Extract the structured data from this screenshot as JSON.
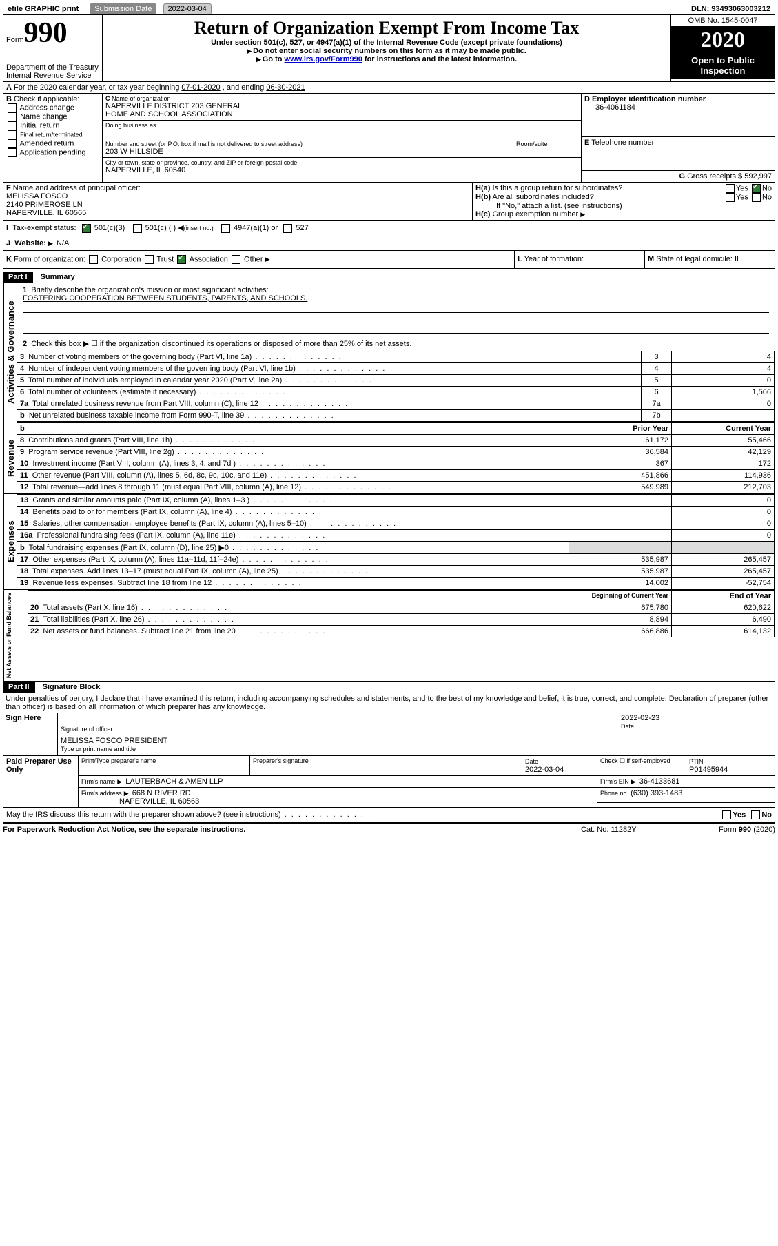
{
  "topbar": {
    "efile": "efile GRAPHIC print",
    "submission_label": "Submission Date",
    "submission_date": "2022-03-04",
    "dln_label": "DLN:",
    "dln": "93493063003212"
  },
  "header": {
    "form_label": "Form",
    "form_num": "990",
    "dept1": "Department of the Treasury",
    "dept2": "Internal Revenue Service",
    "title": "Return of Organization Exempt From Income Tax",
    "sub1": "Under section 501(c), 527, or 4947(a)(1) of the Internal Revenue Code (except private foundations)",
    "sub2": "Do not enter social security numbers on this form as it may be made public.",
    "sub3_pre": "Go to ",
    "sub3_link": "www.irs.gov/Form990",
    "sub3_post": " for instructions and the latest information.",
    "omb": "OMB No. 1545-0047",
    "year": "2020",
    "open": "Open to Public Inspection"
  },
  "A": {
    "text": "For the 2020 calendar year, or tax year beginning ",
    "begin": "07-01-2020",
    "mid": ", and ending ",
    "end": "06-30-2021"
  },
  "B": {
    "label": "Check if applicable:",
    "opts": [
      "Address change",
      "Name change",
      "Initial return",
      "Final return/terminated",
      "Amended return",
      "Application pending"
    ]
  },
  "C": {
    "name_label": "Name of organization",
    "name1": "NAPERVILLE DISTRICT 203 GENERAL",
    "name2": "HOME AND SCHOOL ASSOCIATION",
    "dba_label": "Doing business as",
    "street_label": "Number and street (or P.O. box if mail is not delivered to street address)",
    "room_label": "Room/suite",
    "street": "203 W HILLSIDE",
    "city_label": "City or town, state or province, country, and ZIP or foreign postal code",
    "city": "NAPERVILLE, IL  60540"
  },
  "D": {
    "label": "Employer identification number",
    "val": "36-4061184"
  },
  "E": {
    "label": "Telephone number"
  },
  "G": {
    "label": "Gross receipts $",
    "val": "592,997"
  },
  "F": {
    "label": "Name and address of principal officer:",
    "l1": "MELISSA FOSCO",
    "l2": "2140 PRIMEROSE LN",
    "l3": "NAPERVILLE, IL  60565"
  },
  "H": {
    "a": "Is this a group return for subordinates?",
    "b": "Are all subordinates included?",
    "bnote": "If \"No,\" attach a list. (see instructions)",
    "c": "Group exemption number"
  },
  "I": {
    "label": "Tax-exempt status:",
    "o1": "501(c)(3)",
    "o2": "501(c) (   )",
    "o2b": "(insert no.)",
    "o3": "4947(a)(1) or",
    "o4": "527"
  },
  "J": {
    "label": "Website:",
    "val": "N/A"
  },
  "K": {
    "label": "Form of organization:",
    "o1": "Corporation",
    "o2": "Trust",
    "o3": "Association",
    "o4": "Other"
  },
  "L": {
    "label": "Year of formation:"
  },
  "M": {
    "label": "State of legal domicile:",
    "val": "IL"
  },
  "part1": {
    "hdr": "Part I",
    "title": "Summary",
    "q1": "Briefly describe the organization's mission or most significant activities:",
    "q1v": "FOSTERING COOPERATION BETWEEN STUDENTS, PARENTS, AND SCHOOLS.",
    "q2": "Check this box ▶ ☐ if the organization discontinued its operations or disposed of more than 25% of its net assets.",
    "governance_label": "Activities & Governance",
    "rows_gov": [
      {
        "n": "3",
        "t": "Number of voting members of the governing body (Part VI, line 1a)",
        "k": "3",
        "v": "4"
      },
      {
        "n": "4",
        "t": "Number of independent voting members of the governing body (Part VI, line 1b)",
        "k": "4",
        "v": "4"
      },
      {
        "n": "5",
        "t": "Total number of individuals employed in calendar year 2020 (Part V, line 2a)",
        "k": "5",
        "v": "0"
      },
      {
        "n": "6",
        "t": "Total number of volunteers (estimate if necessary)",
        "k": "6",
        "v": "1,566"
      },
      {
        "n": "7a",
        "t": "Total unrelated business revenue from Part VIII, column (C), line 12",
        "k": "7a",
        "v": "0"
      },
      {
        "n": "b",
        "t": "Net unrelated business taxable income from Form 990-T, line 39",
        "k": "7b",
        "v": ""
      }
    ],
    "col_prior": "Prior Year",
    "col_current": "Current Year",
    "revenue_label": "Revenue",
    "rows_rev": [
      {
        "n": "8",
        "t": "Contributions and grants (Part VIII, line 1h)",
        "p": "61,172",
        "c": "55,466"
      },
      {
        "n": "9",
        "t": "Program service revenue (Part VIII, line 2g)",
        "p": "36,584",
        "c": "42,129"
      },
      {
        "n": "10",
        "t": "Investment income (Part VIII, column (A), lines 3, 4, and 7d )",
        "p": "367",
        "c": "172"
      },
      {
        "n": "11",
        "t": "Other revenue (Part VIII, column (A), lines 5, 6d, 8c, 9c, 10c, and 11e)",
        "p": "451,866",
        "c": "114,936"
      },
      {
        "n": "12",
        "t": "Total revenue—add lines 8 through 11 (must equal Part VIII, column (A), line 12)",
        "p": "549,989",
        "c": "212,703"
      }
    ],
    "expenses_label": "Expenses",
    "rows_exp": [
      {
        "n": "13",
        "t": "Grants and similar amounts paid (Part IX, column (A), lines 1–3 )",
        "p": "",
        "c": "0"
      },
      {
        "n": "14",
        "t": "Benefits paid to or for members (Part IX, column (A), line 4)",
        "p": "",
        "c": "0"
      },
      {
        "n": "15",
        "t": "Salaries, other compensation, employee benefits (Part IX, column (A), lines 5–10)",
        "p": "",
        "c": "0"
      },
      {
        "n": "16a",
        "t": "Professional fundraising fees (Part IX, column (A), line 11e)",
        "p": "",
        "c": "0"
      },
      {
        "n": "b",
        "t": "Total fundraising expenses (Part IX, column (D), line 25) ▶0",
        "p": "shade",
        "c": "shade"
      },
      {
        "n": "17",
        "t": "Other expenses (Part IX, column (A), lines 11a–11d, 11f–24e)",
        "p": "535,987",
        "c": "265,457"
      },
      {
        "n": "18",
        "t": "Total expenses. Add lines 13–17 (must equal Part IX, column (A), line 25)",
        "p": "535,987",
        "c": "265,457"
      },
      {
        "n": "19",
        "t": "Revenue less expenses. Subtract line 18 from line 12",
        "p": "14,002",
        "c": "-52,754"
      }
    ],
    "col_begin": "Beginning of Current Year",
    "col_end": "End of Year",
    "net_label": "Net Assets or Fund Balances",
    "rows_net": [
      {
        "n": "20",
        "t": "Total assets (Part X, line 16)",
        "p": "675,780",
        "c": "620,622"
      },
      {
        "n": "21",
        "t": "Total liabilities (Part X, line 26)",
        "p": "8,894",
        "c": "6,490"
      },
      {
        "n": "22",
        "t": "Net assets or fund balances. Subtract line 21 from line 20",
        "p": "666,886",
        "c": "614,132"
      }
    ]
  },
  "part2": {
    "hdr": "Part II",
    "title": "Signature Block",
    "decl": "Under penalties of perjury, I declare that I have examined this return, including accompanying schedules and statements, and to the best of my knowledge and belief, it is true, correct, and complete. Declaration of preparer (other than officer) is based on all information of which preparer has any knowledge.",
    "sign_here": "Sign Here",
    "sig_officer": "Signature of officer",
    "date_label": "Date",
    "sig_date": "2022-02-23",
    "officer_name": "MELISSA FOSCO PRESIDENT",
    "type_label": "Type or print name and title",
    "paid": "Paid Preparer Use Only",
    "p_print": "Print/Type preparer's name",
    "p_sig": "Preparer's signature",
    "p_date_l": "Date",
    "p_date": "2022-03-04",
    "p_self": "Check ☐ if self-employed",
    "p_ptin_l": "PTIN",
    "p_ptin": "P01495944",
    "firm_l": "Firm's name",
    "firm": "LAUTERBACH & AMEN LLP",
    "firm_ein_l": "Firm's EIN",
    "firm_ein": "36-4133681",
    "addr_l": "Firm's address",
    "addr1": "668 N RIVER RD",
    "addr2": "NAPERVILLE, IL  60563",
    "phone_l": "Phone no.",
    "phone": "(630) 393-1483",
    "discuss": "May the IRS discuss this return with the preparer shown above? (see instructions)"
  },
  "footer": {
    "pra": "For Paperwork Reduction Act Notice, see the separate instructions.",
    "cat": "Cat. No. 11282Y",
    "form": "Form 990 (2020)"
  },
  "yesno": {
    "yes": "Yes",
    "no": "No"
  }
}
